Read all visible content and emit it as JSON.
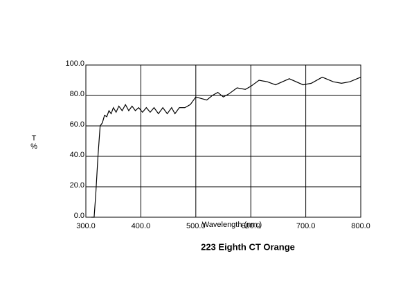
{
  "chart_data": {
    "type": "line",
    "title": "223 Eighth CT Orange",
    "x_label": "Wavelength (nm.)",
    "y_label": [
      "T",
      "%"
    ],
    "xlim": [
      300,
      800
    ],
    "ylim": [
      0,
      100
    ],
    "xticks": [
      {
        "value": 300,
        "label": "300.0"
      },
      {
        "value": 400,
        "label": "400.0"
      },
      {
        "value": 500,
        "label": "500.0"
      },
      {
        "value": 600,
        "label": "600.0"
      },
      {
        "value": 700,
        "label": "700.0"
      },
      {
        "value": 800,
        "label": "800.0"
      }
    ],
    "yticks": [
      {
        "value": 0,
        "label": "0.0"
      },
      {
        "value": 20,
        "label": "20.0"
      },
      {
        "value": 40,
        "label": "40.0"
      },
      {
        "value": 60,
        "label": "60.0"
      },
      {
        "value": 80,
        "label": "80.0"
      },
      {
        "value": 100,
        "label": "100.0"
      }
    ],
    "grid": true,
    "color": "#000000",
    "x": [
      310,
      315,
      318,
      322,
      326,
      330,
      334,
      338,
      342,
      346,
      350,
      355,
      360,
      366,
      372,
      378,
      384,
      390,
      396,
      403,
      410,
      417,
      424,
      432,
      440,
      448,
      456,
      462,
      470,
      480,
      490,
      500,
      510,
      520,
      530,
      540,
      550,
      560,
      575,
      590,
      600,
      615,
      630,
      645,
      670,
      695,
      710,
      730,
      750,
      765,
      780,
      800
    ],
    "values": [
      0,
      0,
      15,
      40,
      60,
      62,
      67,
      66,
      70,
      68,
      72,
      69,
      73,
      70,
      74,
      70,
      73,
      70,
      72,
      69,
      72,
      69,
      72,
      68,
      72,
      68,
      72,
      68,
      72,
      72,
      74,
      79,
      78,
      77,
      80,
      82,
      79,
      81,
      85,
      84,
      86,
      90,
      89,
      87,
      91,
      87,
      88,
      92,
      89,
      88,
      89,
      92
    ]
  }
}
